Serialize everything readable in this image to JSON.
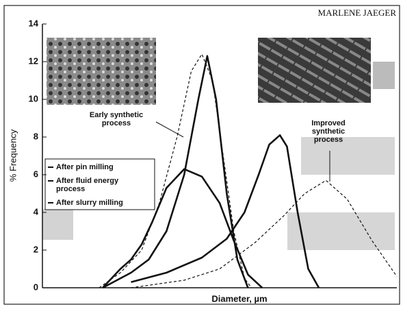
{
  "chart_data": {
    "type": "line",
    "credit": "MARLENE JAEGER",
    "xlabel": "Diameter, µm",
    "ylabel": "% Frequency",
    "annotations": [
      "Early synthetic process",
      "Improved synthetic process"
    ],
    "xlim": [
      0,
      100
    ],
    "ylim": [
      0,
      14
    ],
    "yticks": [
      0,
      2,
      4,
      6,
      8,
      10,
      12,
      14
    ],
    "legend": "left",
    "series": [
      {
        "name": "After pin milling",
        "color": "#111",
        "dash": "4,3",
        "width": 1.2,
        "x": [
          16,
          22,
          28,
          33,
          38,
          42,
          45,
          48,
          51,
          54,
          57,
          59
        ],
        "values": [
          0,
          0.8,
          2,
          4.5,
          8,
          11.5,
          12.4,
          11,
          7,
          3,
          0.5,
          0
        ]
      },
      {
        "name": "After fluid energy process",
        "color": "#111",
        "dash": "none",
        "width": 2.6,
        "x": [
          17,
          25,
          30,
          35,
          40,
          44,
          46.5,
          49,
          52,
          55,
          58
        ],
        "values": [
          0,
          0.8,
          1.5,
          3,
          6,
          10,
          12.3,
          10,
          5,
          1.5,
          0
        ]
      },
      {
        "name": "After slurry milling",
        "color": "#111",
        "dash": "none",
        "width": 2.6,
        "x": [
          17,
          22,
          25,
          28,
          31,
          35,
          40,
          45,
          50,
          54,
          58,
          62
        ],
        "values": [
          0,
          1,
          1.5,
          2.3,
          3.5,
          5.3,
          6.3,
          5.9,
          4.5,
          2.5,
          0.7,
          0
        ]
      },
      {
        "color": "#111",
        "dash": "none",
        "width": 2.6,
        "x": [
          25,
          35,
          45,
          52,
          57,
          61,
          64,
          67,
          69,
          72,
          75,
          78
        ],
        "values": [
          0.3,
          0.8,
          1.6,
          2.6,
          4,
          6,
          7.6,
          8.1,
          7.5,
          4,
          1,
          0
        ]
      },
      {
        "color": "#111",
        "dash": "4,3",
        "width": 1.2,
        "x": [
          25,
          40,
          50,
          60,
          68,
          74,
          80,
          86,
          93,
          100
        ],
        "values": [
          0,
          0.4,
          1,
          2.4,
          3.8,
          5,
          5.7,
          4.7,
          2.5,
          0.6
        ]
      }
    ]
  }
}
